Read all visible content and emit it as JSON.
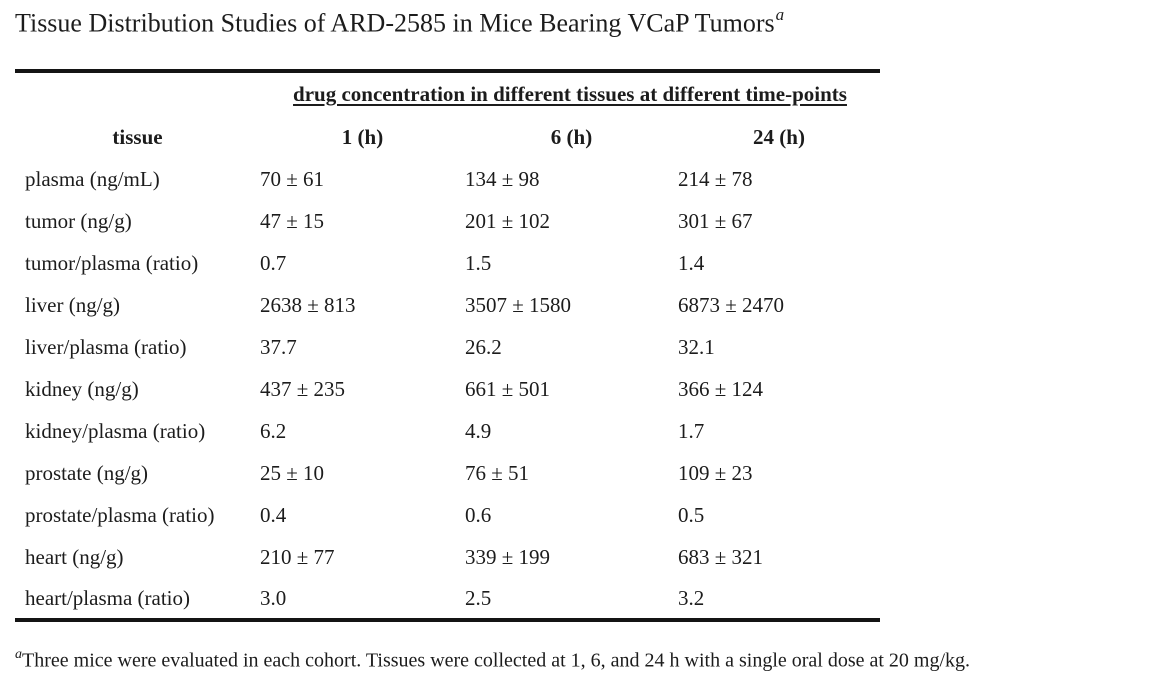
{
  "page": {
    "background_color": "#ffffff",
    "text_color": "#1c1c1c",
    "rule_color": "#141414"
  },
  "title": {
    "text": "Tissue Distribution Studies of ARD-2585 in Mice Bearing VCaP Tumors",
    "footnote_marker": "a"
  },
  "table": {
    "span_header": "drug concentration in different tissues at different time-points",
    "columns": [
      "tissue",
      "1 (h)",
      "6 (h)",
      "24 (h)"
    ],
    "rows": [
      {
        "tissue": "plasma (ng/mL)",
        "values": [
          "70 ± 61",
          "134 ± 98",
          "214 ± 78"
        ]
      },
      {
        "tissue": "tumor (ng/g)",
        "values": [
          "47 ± 15",
          "201 ± 102",
          "301 ± 67"
        ]
      },
      {
        "tissue": "tumor/plasma (ratio)",
        "values": [
          "0.7",
          "1.5",
          "1.4"
        ]
      },
      {
        "tissue": "liver (ng/g)",
        "values": [
          "2638 ± 813",
          "3507 ± 1580",
          "6873 ± 2470"
        ]
      },
      {
        "tissue": "liver/plasma (ratio)",
        "values": [
          "37.7",
          "26.2",
          "32.1"
        ]
      },
      {
        "tissue": "kidney (ng/g)",
        "values": [
          "437 ± 235",
          "661 ± 501",
          "366 ± 124"
        ]
      },
      {
        "tissue": "kidney/plasma (ratio)",
        "values": [
          "6.2",
          "4.9",
          "1.7"
        ]
      },
      {
        "tissue": "prostate (ng/g)",
        "values": [
          "25 ± 10",
          "76 ± 51",
          "109 ± 23"
        ]
      },
      {
        "tissue": "prostate/plasma (ratio)",
        "values": [
          "0.4",
          "0.6",
          "0.5"
        ]
      },
      {
        "tissue": "heart (ng/g)",
        "values": [
          "210 ± 77",
          "339 ± 199",
          "683 ± 321"
        ]
      },
      {
        "tissue": "heart/plasma (ratio)",
        "values": [
          "3.0",
          "2.5",
          "3.2"
        ]
      }
    ]
  },
  "footnote": {
    "marker": "a",
    "text": "Three mice were evaluated in each cohort. Tissues were collected at 1, 6, and 24 h with a single oral dose at 20 mg/kg."
  }
}
